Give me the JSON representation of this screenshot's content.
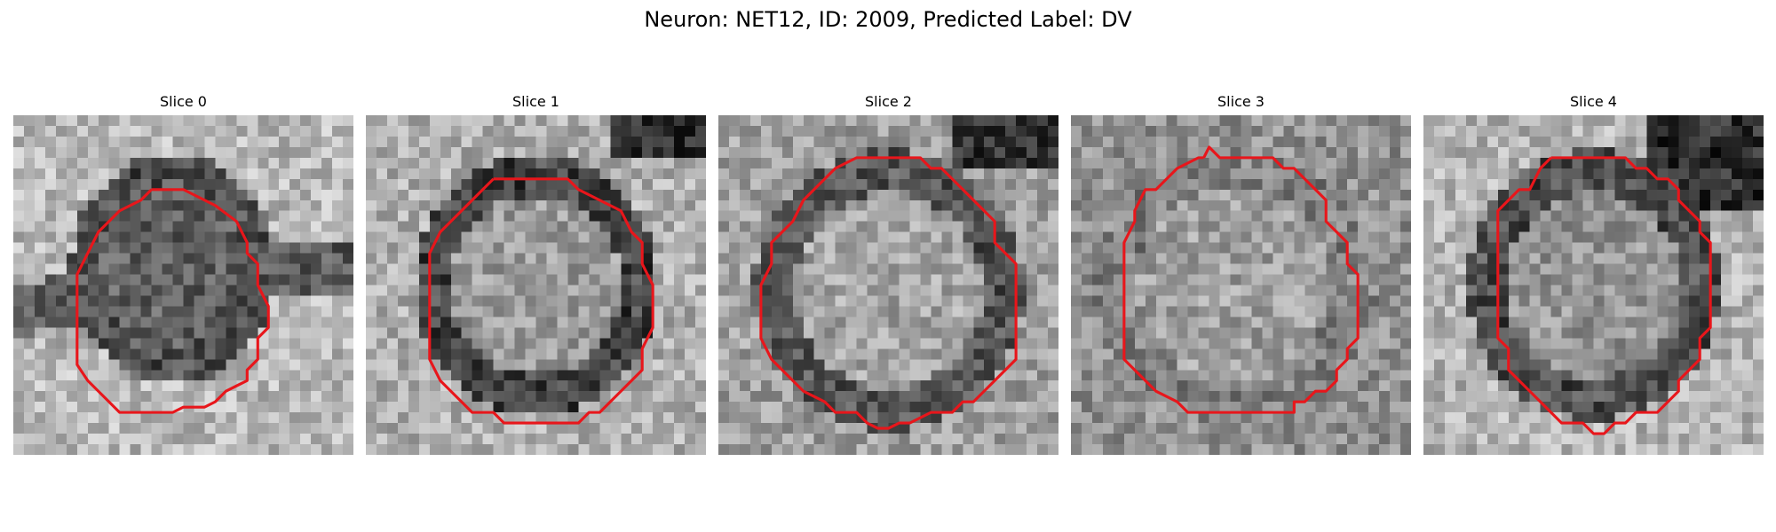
{
  "figure": {
    "title": "Neuron: NET12, ID: 2009, Predicted Label: DV"
  },
  "panels": [
    {
      "title": "Slice 0",
      "mask_color": "#e8161b"
    },
    {
      "title": "Slice 1",
      "mask_color": "#e8161b"
    },
    {
      "title": "Slice 2",
      "mask_color": "#e8161b"
    },
    {
      "title": "Slice 3",
      "mask_color": "#e8161b"
    },
    {
      "title": "Slice 4",
      "mask_color": "#e8161b"
    }
  ]
}
